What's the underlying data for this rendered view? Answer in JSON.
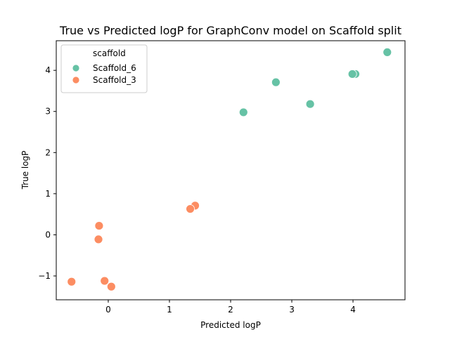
{
  "chart_data": {
    "type": "scatter",
    "title": "True vs Predicted logP for GraphConv model on Scaffold split",
    "xlabel": "Predicted logP",
    "ylabel": "True logP",
    "xlim": [
      -0.85,
      4.85
    ],
    "ylim": [
      -1.58,
      4.72
    ],
    "xticks": [
      0,
      1,
      2,
      3,
      4
    ],
    "yticks": [
      -1,
      0,
      1,
      2,
      3,
      4
    ],
    "grid": false,
    "legend": {
      "title": "scaffold",
      "placement": "top-left"
    },
    "series": [
      {
        "name": "Scaffold_6",
        "color": "#66c2a5",
        "points": [
          {
            "x": 2.21,
            "y": 2.98
          },
          {
            "x": 2.74,
            "y": 3.71
          },
          {
            "x": 3.3,
            "y": 3.18
          },
          {
            "x": 4.04,
            "y": 3.91
          },
          {
            "x": 3.99,
            "y": 3.91
          },
          {
            "x": 4.56,
            "y": 4.44
          }
        ]
      },
      {
        "name": "Scaffold_3",
        "color": "#fc8d62",
        "points": [
          {
            "x": 1.42,
            "y": 0.71
          },
          {
            "x": 1.34,
            "y": 0.63
          },
          {
            "x": -0.15,
            "y": 0.22
          },
          {
            "x": -0.16,
            "y": -0.11
          },
          {
            "x": -0.06,
            "y": -1.12
          },
          {
            "x": 0.05,
            "y": -1.26
          },
          {
            "x": -0.6,
            "y": -1.14
          }
        ]
      }
    ]
  }
}
